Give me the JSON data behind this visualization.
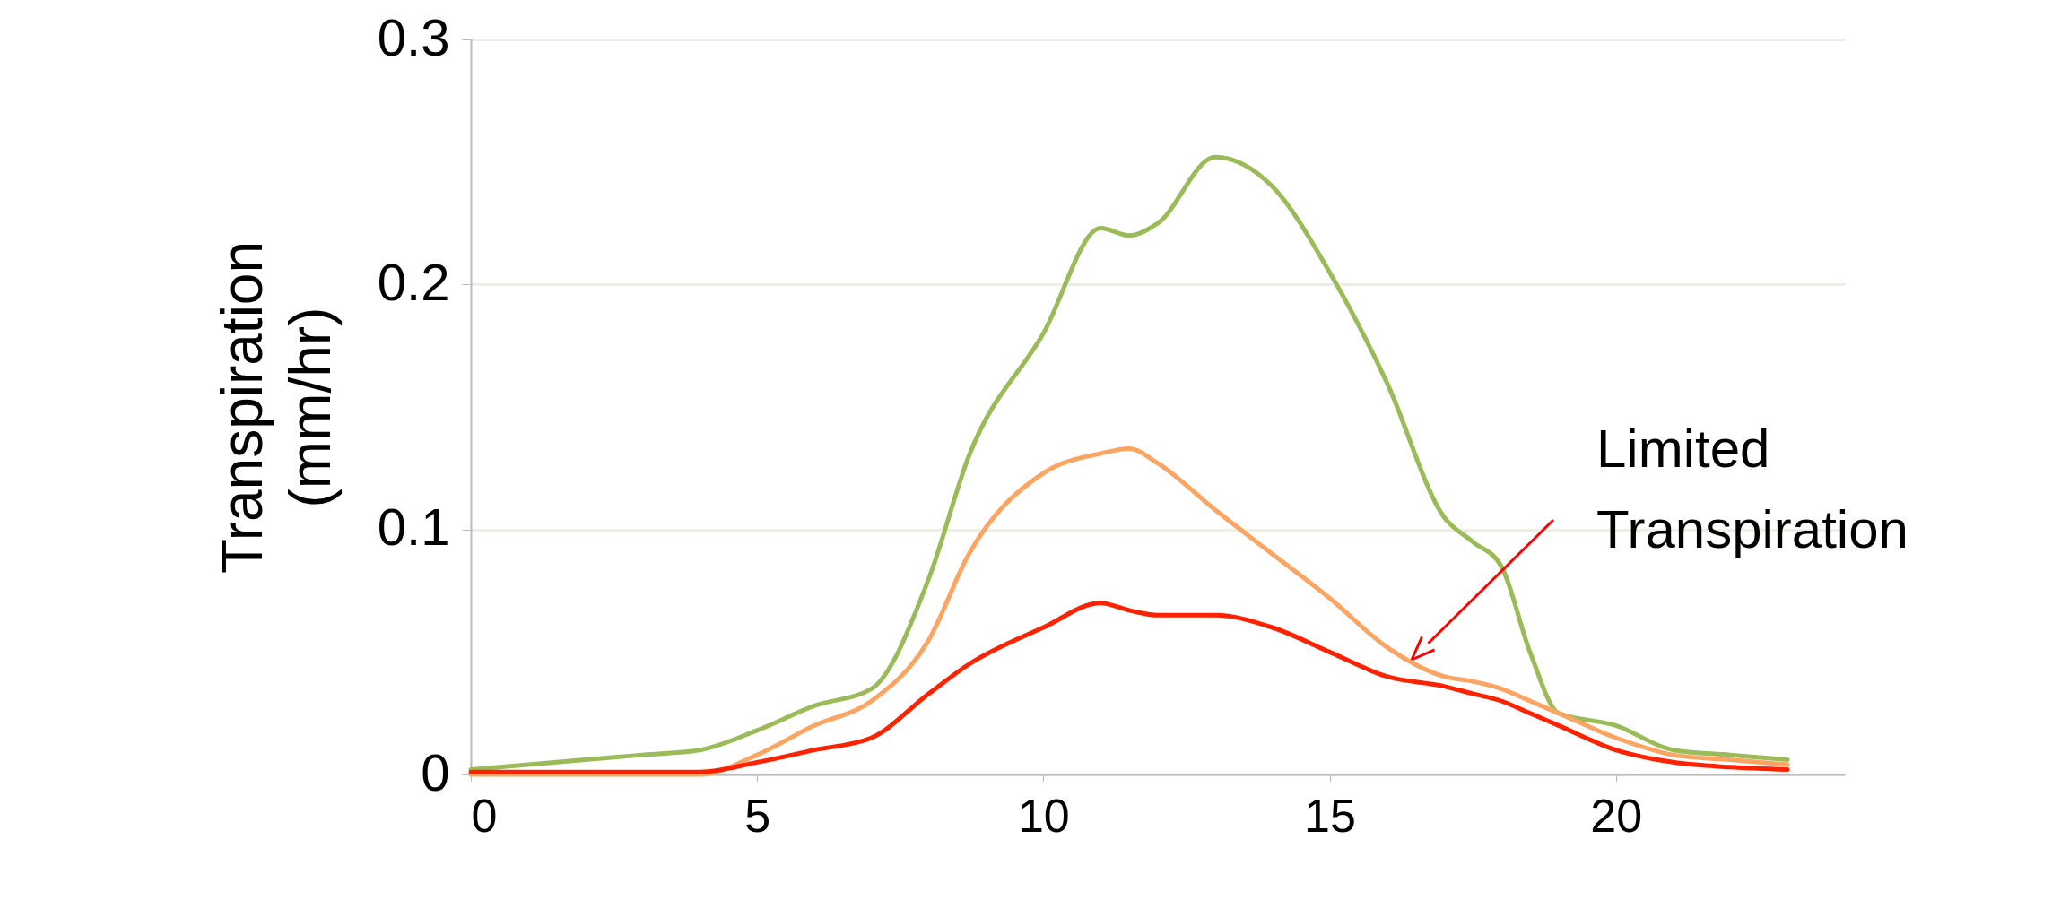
{
  "chart_data": {
    "type": "line",
    "ylabel": "Transpiration\n(mm/hr)",
    "x": [
      0,
      1,
      2,
      3,
      4,
      5,
      6,
      7,
      8,
      8.7,
      10,
      11,
      11.5,
      12,
      13,
      14,
      15,
      16,
      17,
      17.5,
      18,
      18.5,
      19,
      20,
      21,
      22,
      23
    ],
    "series": [
      {
        "color": "#9bbb59",
        "values": [
          0.002,
          0.004,
          0.006,
          0.008,
          0.01,
          0.018,
          0.028,
          0.035,
          0.08,
          0.13,
          0.18,
          0.223,
          0.22,
          0.225,
          0.252,
          0.24,
          0.205,
          0.16,
          0.105,
          0.095,
          0.085,
          0.05,
          0.025,
          0.02,
          0.01,
          0.008,
          0.006
        ]
      },
      {
        "color": "#fca562",
        "values": [
          0,
          0,
          0,
          0,
          0,
          0.008,
          0.02,
          0.03,
          0.055,
          0.09,
          0.123,
          0.131,
          0.133,
          0.127,
          0.108,
          0.09,
          0.072,
          0.052,
          0.04,
          0.038,
          0.035,
          0.03,
          0.025,
          0.015,
          0.008,
          0.006,
          0.004
        ]
      },
      {
        "color": "#ff2200",
        "values": [
          0.001,
          0.001,
          0.001,
          0.001,
          0.001,
          0.005,
          0.01,
          0.015,
          0.033,
          0.045,
          0.06,
          0.07,
          0.067,
          0.065,
          0.065,
          0.06,
          0.05,
          0.04,
          0.036,
          0.033,
          0.03,
          0.025,
          0.02,
          0.01,
          0.005,
          0.003,
          0.002
        ]
      }
    ],
    "xlim": [
      0,
      24
    ],
    "xticks": [
      0,
      5,
      10,
      15,
      20
    ],
    "ylim": [
      0,
      0.3
    ],
    "yticks": [
      0,
      0.1,
      0.2,
      0.3
    ],
    "grid": "y",
    "marker": "none",
    "line_style": "solid",
    "annotations": [
      "Limited Transpiration"
    ]
  }
}
